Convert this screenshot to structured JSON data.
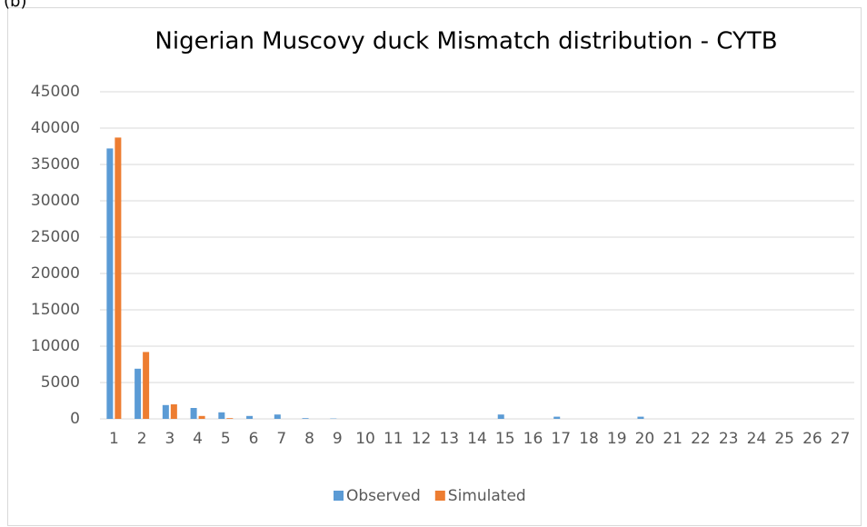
{
  "panel_label": "(b)",
  "chart_data": {
    "type": "bar",
    "title": "Nigerian Muscovy duck Mismatch distribution - CYTB",
    "categories": [
      1,
      2,
      3,
      4,
      5,
      6,
      7,
      8,
      9,
      10,
      11,
      12,
      13,
      14,
      15,
      16,
      17,
      18,
      19,
      20,
      21,
      22,
      23,
      24,
      25,
      26,
      27
    ],
    "series": [
      {
        "name": "Observed",
        "color": "#5b9bd5",
        "values": [
          37200,
          6900,
          1900,
          1500,
          900,
          400,
          600,
          100,
          50,
          0,
          0,
          0,
          0,
          0,
          600,
          0,
          300,
          0,
          0,
          300,
          0,
          0,
          0,
          0,
          0,
          0,
          0
        ]
      },
      {
        "name": "Simulated",
        "color": "#ed7d31",
        "values": [
          38700,
          9200,
          2000,
          400,
          100,
          0,
          0,
          0,
          0,
          0,
          0,
          0,
          0,
          0,
          0,
          0,
          0,
          0,
          0,
          0,
          0,
          0,
          0,
          0,
          0,
          0,
          0
        ]
      }
    ],
    "ylim": [
      0,
      45000
    ],
    "yticks": [
      0,
      5000,
      10000,
      15000,
      20000,
      25000,
      30000,
      35000,
      40000,
      45000
    ],
    "grid": true,
    "legend": "bottom"
  }
}
